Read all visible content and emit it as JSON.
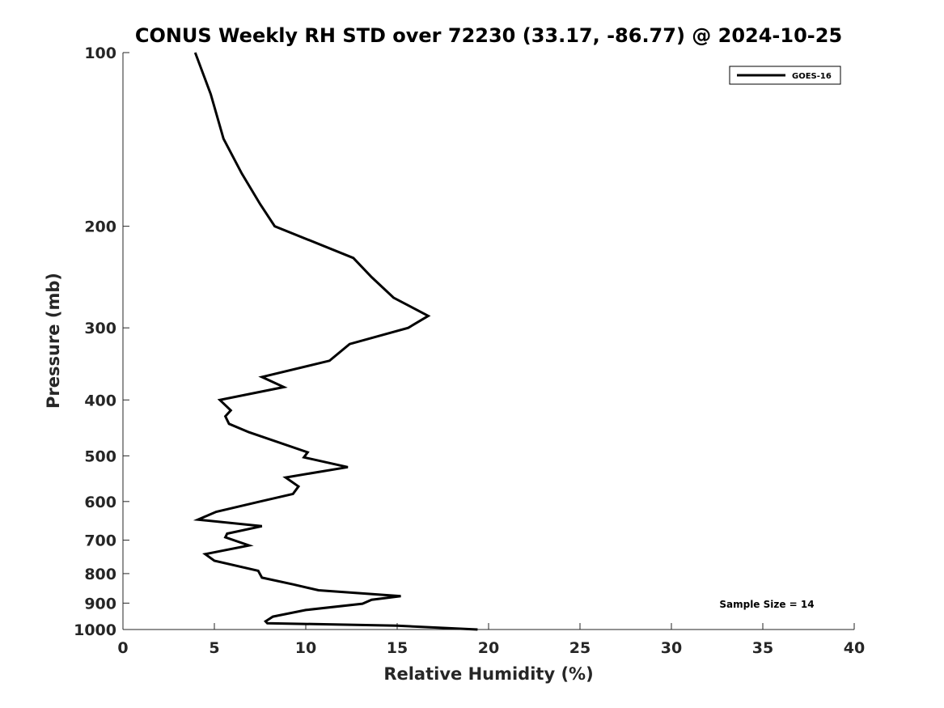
{
  "chart_data": {
    "type": "line",
    "title": "CONUS Weekly RH STD over 72230 (33.17, -86.77) @ 2024-10-25",
    "xlabel": "Relative Humidity (%)",
    "ylabel": "Pressure (mb)",
    "xlim": [
      0,
      40
    ],
    "ylim": [
      100,
      1000
    ],
    "y_scale": "log",
    "y_reversed": true,
    "xticks": [
      0,
      5,
      10,
      15,
      20,
      25,
      30,
      35,
      40
    ],
    "yticks": [
      100,
      200,
      300,
      400,
      500,
      600,
      700,
      800,
      900,
      1000
    ],
    "grid": false,
    "legend_position": "top-right",
    "annotation": "Sample Size = 14",
    "series": [
      {
        "name": "GOES-16",
        "color": "#000000",
        "points": [
          [
            3.95,
            100
          ],
          [
            4.8,
            118
          ],
          [
            5.5,
            141
          ],
          [
            6.5,
            162
          ],
          [
            7.5,
            183
          ],
          [
            8.3,
            200
          ],
          [
            12.6,
            227
          ],
          [
            13.6,
            245
          ],
          [
            14.8,
            266
          ],
          [
            16.7,
            286
          ],
          [
            15.6,
            300
          ],
          [
            12.4,
            320
          ],
          [
            11.3,
            342
          ],
          [
            7.6,
            365
          ],
          [
            8.8,
            380
          ],
          [
            5.3,
            400
          ],
          [
            5.9,
            417
          ],
          [
            5.6,
            427
          ],
          [
            5.8,
            440
          ],
          [
            6.9,
            455
          ],
          [
            10.1,
            493
          ],
          [
            9.9,
            503
          ],
          [
            12.3,
            523
          ],
          [
            8.9,
            545
          ],
          [
            9.6,
            565
          ],
          [
            9.3,
            582
          ],
          [
            7.5,
            600
          ],
          [
            5.1,
            625
          ],
          [
            4.1,
            645
          ],
          [
            7.6,
            662
          ],
          [
            5.7,
            682
          ],
          [
            5.6,
            692
          ],
          [
            6.9,
            715
          ],
          [
            4.5,
            740
          ],
          [
            5.0,
            760
          ],
          [
            7.4,
            791
          ],
          [
            7.6,
            813
          ],
          [
            9.3,
            835
          ],
          [
            10.7,
            855
          ],
          [
            15.2,
            875
          ],
          [
            13.6,
            888
          ],
          [
            13.1,
            902
          ],
          [
            10.0,
            925
          ],
          [
            8.2,
            950
          ],
          [
            7.8,
            968
          ],
          [
            7.9,
            975
          ],
          [
            15.0,
            985
          ],
          [
            19.4,
            1000
          ]
        ]
      }
    ]
  }
}
